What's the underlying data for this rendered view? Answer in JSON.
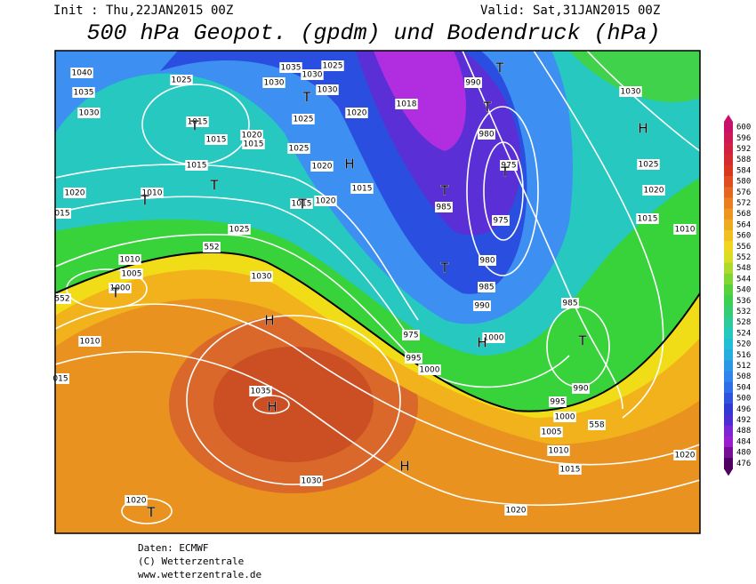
{
  "header": {
    "init": "Init : Thu,22JAN2015 00Z",
    "valid": "Valid: Sat,31JAN2015 00Z",
    "title": "500 hPa Geopot. (gpdm) und Bodendruck (hPa)"
  },
  "colorbar": {
    "labels": [
      "600",
      "596",
      "592",
      "588",
      "584",
      "580",
      "576",
      "572",
      "568",
      "564",
      "560",
      "556",
      "552",
      "548",
      "544",
      "540",
      "536",
      "532",
      "528",
      "524",
      "520",
      "516",
      "512",
      "508",
      "504",
      "500",
      "496",
      "492",
      "488",
      "484",
      "480",
      "476"
    ]
  },
  "map": {
    "labels": [
      "1040",
      "1035",
      "1030",
      "1025",
      "1035",
      "1030",
      "1025",
      "1030",
      "1030",
      "1025",
      "1020",
      "1015",
      "1015",
      "1020",
      "1015",
      "1025",
      "1020",
      "1015",
      "1010",
      "1020",
      "015",
      "1015",
      "1020",
      "1015",
      "1025",
      "1010",
      "1005",
      "1000",
      "552",
      "552",
      "1030",
      "1010",
      "015",
      "1035",
      "1030",
      "1020",
      "1018",
      "990",
      "980",
      "975",
      "985",
      "975",
      "980",
      "985",
      "990",
      "975",
      "995",
      "1000",
      "1000",
      "985",
      "990",
      "995",
      "1000",
      "1005",
      "1010",
      "1015",
      "1020",
      "1020",
      "1030",
      "1025",
      "1020",
      "1015",
      "1010",
      "558"
    ],
    "markers": [
      "H",
      "H",
      "H",
      "H",
      "H",
      "H",
      "T",
      "T",
      "T",
      "T",
      "T",
      "T",
      "T",
      "T",
      "T",
      "T",
      "T",
      "T",
      "T"
    ]
  },
  "footer": {
    "lines": [
      "Daten: ECMWF",
      "(C) Wetterzentrale",
      "www.wetterzentrale.de"
    ]
  }
}
